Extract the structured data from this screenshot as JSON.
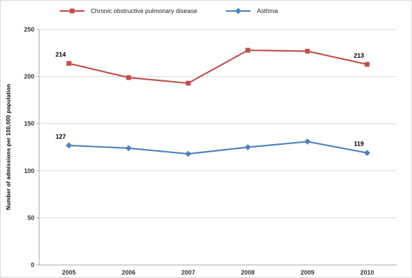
{
  "legend": {
    "items": [
      {
        "key": "copd",
        "label": "Chronic obstructive pulmonary disease"
      },
      {
        "key": "asthma",
        "label": "Asthma"
      }
    ]
  },
  "axes": {
    "y_title": "Number of admissions  per 100,000 population",
    "y_ticks": [
      "0",
      "50",
      "100",
      "150",
      "200",
      "250"
    ],
    "x_ticks": [
      "2005",
      "2006",
      "2007",
      "2008",
      "2009",
      "2010"
    ]
  },
  "chart_data": {
    "type": "line",
    "title": "",
    "categories": [
      "2005",
      "2006",
      "2007",
      "2008",
      "2009",
      "2010"
    ],
    "series": [
      {
        "key": "copd",
        "name": "Chronic obstructive pulmonary disease",
        "color": "#C0504D",
        "marker": "square",
        "values": [
          214,
          199,
          193,
          228,
          227,
          213
        ],
        "point_labels": [
          "214",
          "",
          "",
          "",
          "",
          "213"
        ]
      },
      {
        "key": "asthma",
        "name": "Asthma",
        "color": "#4F81BD",
        "marker": "diamond",
        "values": [
          127,
          124,
          118,
          125,
          131,
          119
        ],
        "point_labels": [
          "127",
          "",
          "",
          "",
          "",
          "119"
        ]
      }
    ],
    "xlabel": "",
    "ylabel": "Number of admissions  per 100,000 population",
    "ylim": [
      0,
      250
    ],
    "yticks": [
      0,
      50,
      100,
      150,
      200,
      250
    ],
    "grid": "horizontal",
    "legend_position": "top"
  },
  "colors": {
    "copd": "#C0504D",
    "asthma": "#4F81BD",
    "gridline": "#D9D9D9",
    "axis_line": "#A6A6A6",
    "tick_text": "#333333",
    "data_label": "#000000",
    "background": "#FFFFFF"
  }
}
